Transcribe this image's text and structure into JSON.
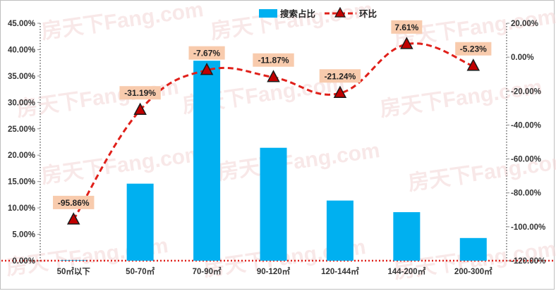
{
  "chart_data": {
    "type": "bar+line",
    "categories": [
      "50㎡以下",
      "50-70㎡",
      "70-90㎡",
      "90-120㎡",
      "120-144㎡",
      "144-200㎡",
      "200-300㎡"
    ],
    "series": [
      {
        "name": "搜索占比",
        "type": "bar",
        "axis": "left",
        "color": "#00b0f0",
        "values": [
          0.1,
          14.6,
          37.9,
          21.4,
          11.4,
          9.2,
          4.3
        ]
      },
      {
        "name": "环比",
        "type": "line",
        "axis": "right",
        "color": "#e0201a",
        "marker_color": "#c00000",
        "values": [
          -95.86,
          -31.19,
          -7.67,
          -11.87,
          -21.24,
          7.61,
          -5.23
        ],
        "labels": [
          "-95.86%",
          "-31.19%",
          "-7.67%",
          "-11.87%",
          "-21.24%",
          "7.61%",
          "-5.23%"
        ]
      }
    ],
    "left_axis": {
      "ylim": [
        0,
        45
      ],
      "ticks": [
        "0.00%",
        "5.00%",
        "10.00%",
        "15.00%",
        "20.00%",
        "25.00%",
        "30.00%",
        "35.00%",
        "40.00%",
        "45.00%"
      ]
    },
    "right_axis": {
      "ylim": [
        -120,
        20
      ],
      "ticks": [
        "-120.00%",
        "-100.00%",
        "-80.00%",
        "-60.00%",
        "-40.00%",
        "-20.00%",
        "0.00%",
        "20.00%"
      ]
    },
    "legend_position": "top-center",
    "data_label_bg": "#f8cbad"
  },
  "watermark": "房天下Fang.com"
}
